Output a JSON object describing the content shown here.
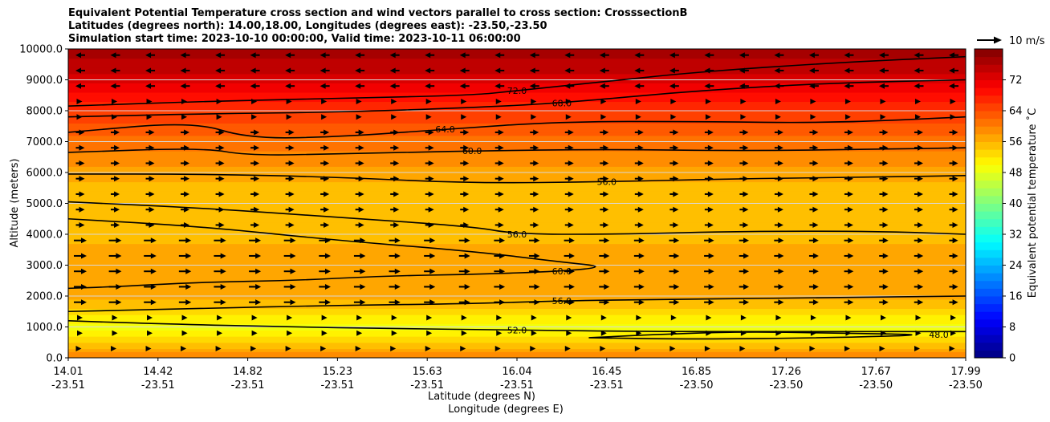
{
  "chart_data": {
    "type": "heatmap",
    "title_lines": [
      "Equivalent Potential Temperature cross section and wind vectors parallel to cross section: CrosssectionB",
      "Latitudes (degrees north): 14.00,18.00, Longitudes (degrees east): -23.50,-23.50",
      "Simulation start time: 2023-10-10 00:00:00, Valid time: 2023-10-11 06:00:00"
    ],
    "ylabel": "Altitude (meters)",
    "xlabel_1": "Latitude (degrees N)",
    "xlabel_2": "Longitude (degrees E)",
    "ylim": [
      0,
      10000
    ],
    "yticks": [
      0,
      1000,
      2000,
      3000,
      4000,
      5000,
      6000,
      7000,
      8000,
      9000,
      10000
    ],
    "ytick_labels": [
      "0.0",
      "1000.0",
      "2000.0",
      "3000.0",
      "4000.0",
      "5000.0",
      "6000.0",
      "7000.0",
      "8000.0",
      "9000.0",
      "10000.0"
    ],
    "xticks_lat": [
      "14.01",
      "14.42",
      "14.82",
      "15.23",
      "15.63",
      "16.04",
      "16.45",
      "16.85",
      "17.26",
      "17.67",
      "17.99"
    ],
    "xticks_lon": [
      "-23.51",
      "-23.51",
      "-23.51",
      "-23.51",
      "-23.51",
      "-23.51",
      "-23.51",
      "-23.50",
      "-23.50",
      "-23.50",
      "-23.50"
    ],
    "colorbar": {
      "label": "Equivalent potential temperature ˚C",
      "range": [
        0,
        80
      ],
      "ticks": [
        0,
        8,
        16,
        24,
        32,
        40,
        48,
        56,
        64,
        72
      ],
      "tick_labels": [
        "0",
        "8",
        "16",
        "24",
        "32",
        "40",
        "48",
        "56",
        "64",
        "72"
      ]
    },
    "quiver_key": "10 m/s",
    "theta_e_profile": [
      {
        "z": 0,
        "value": 60
      },
      {
        "z": 500,
        "value": 54
      },
      {
        "z": 1000,
        "value": 49
      },
      {
        "z": 1500,
        "value": 53
      },
      {
        "z": 2000,
        "value": 57
      },
      {
        "z": 3000,
        "value": 58
      },
      {
        "z": 4000,
        "value": 55
      },
      {
        "z": 5000,
        "value": 54
      },
      {
        "z": 6000,
        "value": 57
      },
      {
        "z": 7000,
        "value": 61
      },
      {
        "z": 8000,
        "value": 66
      },
      {
        "z": 9000,
        "value": 73
      },
      {
        "z": 10000,
        "value": 77
      }
    ],
    "contours": [
      {
        "label": "72.0",
        "points": [
          [
            0,
            8150
          ],
          [
            0.15,
            8300
          ],
          [
            0.3,
            8400
          ],
          [
            0.45,
            8500
          ],
          [
            0.5,
            8650
          ],
          [
            0.6,
            8950
          ],
          [
            0.7,
            9250
          ],
          [
            0.85,
            9550
          ],
          [
            1,
            9750
          ]
        ]
      },
      {
        "label": "68.0",
        "points": [
          [
            0,
            7800
          ],
          [
            0.15,
            7900
          ],
          [
            0.3,
            7950
          ],
          [
            0.45,
            8100
          ],
          [
            0.55,
            8250
          ],
          [
            0.7,
            8650
          ],
          [
            0.85,
            8900
          ],
          [
            1,
            9000
          ]
        ]
      },
      {
        "label": "64.0",
        "points": [
          [
            0,
            7300
          ],
          [
            0.14,
            7650
          ],
          [
            0.2,
            7100
          ],
          [
            0.3,
            7150
          ],
          [
            0.42,
            7400
          ],
          [
            0.55,
            7650
          ],
          [
            0.7,
            7650
          ],
          [
            0.85,
            7600
          ],
          [
            1,
            7800
          ]
        ]
      },
      {
        "label": "60.0",
        "points": [
          [
            0,
            6650
          ],
          [
            0.15,
            6800
          ],
          [
            0.2,
            6550
          ],
          [
            0.3,
            6600
          ],
          [
            0.45,
            6700
          ],
          [
            0.6,
            6750
          ],
          [
            0.75,
            6700
          ],
          [
            0.9,
            6750
          ],
          [
            1,
            6800
          ]
        ]
      },
      {
        "label": "56.0",
        "points": [
          [
            0,
            5950
          ],
          [
            0.15,
            5950
          ],
          [
            0.3,
            5850
          ],
          [
            0.45,
            5650
          ],
          [
            0.6,
            5700
          ],
          [
            0.75,
            5800
          ],
          [
            0.9,
            5850
          ],
          [
            1,
            5900
          ]
        ]
      },
      {
        "label": "56.0",
        "points": [
          [
            0,
            5050
          ],
          [
            0.15,
            4850
          ],
          [
            0.3,
            4550
          ],
          [
            0.45,
            4250
          ],
          [
            0.5,
            4000
          ],
          [
            0.62,
            4000
          ],
          [
            0.75,
            4100
          ],
          [
            0.9,
            4100
          ],
          [
            1,
            4000
          ]
        ]
      },
      {
        "label": "60.0",
        "points": [
          [
            0,
            4500
          ],
          [
            0.15,
            4250
          ],
          [
            0.3,
            3800
          ],
          [
            0.45,
            3450
          ],
          [
            0.55,
            3100
          ],
          [
            0.6,
            2950
          ],
          [
            0.55,
            2800
          ],
          [
            0.45,
            2700
          ],
          [
            0.35,
            2650
          ],
          [
            0.25,
            2500
          ],
          [
            0.15,
            2450
          ],
          [
            0.05,
            2300
          ],
          [
            0,
            2250
          ]
        ]
      },
      {
        "label": "56.0",
        "points": [
          [
            0,
            1500
          ],
          [
            0.15,
            1600
          ],
          [
            0.3,
            1700
          ],
          [
            0.45,
            1750
          ],
          [
            0.55,
            1850
          ],
          [
            0.7,
            1900
          ],
          [
            0.85,
            1950
          ],
          [
            1,
            2000
          ]
        ]
      },
      {
        "label": "52.0",
        "points": [
          [
            0,
            1200
          ],
          [
            0.1,
            1100
          ],
          [
            0.25,
            1000
          ],
          [
            0.35,
            950
          ],
          [
            0.5,
            900
          ],
          [
            0.65,
            850
          ],
          [
            0.8,
            850
          ],
          [
            1,
            850
          ]
        ]
      },
      {
        "label": "48.0",
        "points": [
          [
            0.58,
            650
          ],
          [
            0.65,
            750
          ],
          [
            0.75,
            850
          ],
          [
            0.85,
            800
          ],
          [
            0.97,
            750
          ],
          [
            0.85,
            650
          ],
          [
            0.7,
            600
          ],
          [
            0.58,
            650
          ]
        ]
      }
    ]
  }
}
